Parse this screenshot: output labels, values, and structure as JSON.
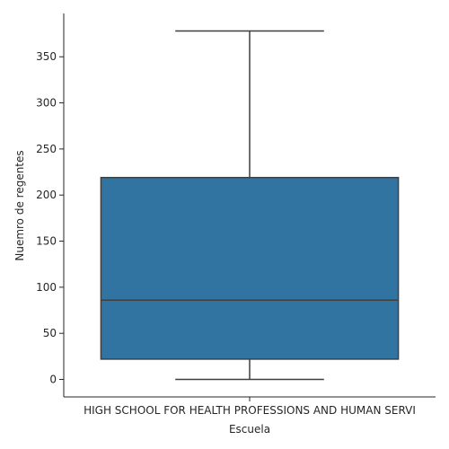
{
  "chart_data": {
    "type": "box",
    "xlabel": "Escuela",
    "ylabel": "Nuemro de regentes",
    "categories": [
      "HIGH SCHOOL FOR HEALTH PROFESSIONS AND HUMAN SERVI"
    ],
    "boxes": [
      {
        "category": "HIGH SCHOOL FOR HEALTH PROFESSIONS AND HUMAN SERVI",
        "whisker_low": 0,
        "q1": 22,
        "median": 86,
        "q3": 219,
        "whisker_high": 378
      }
    ],
    "yticks": [
      0,
      50,
      100,
      150,
      200,
      250,
      300,
      350
    ],
    "ylim": [
      -19,
      397
    ],
    "grid": false,
    "colors": {
      "box_fill": "#3274a1",
      "line": "#3f3f3f",
      "axis": "#262626"
    }
  }
}
